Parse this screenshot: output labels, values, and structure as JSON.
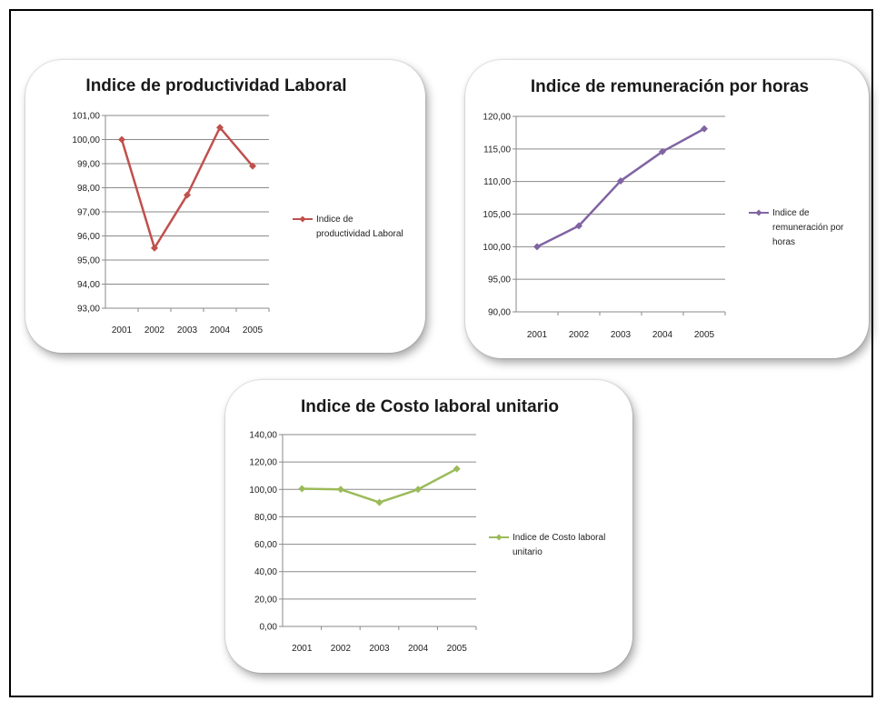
{
  "chart_data": [
    {
      "type": "line",
      "title": "Indice de productividad Laboral",
      "categories": [
        "2001",
        "2002",
        "2003",
        "2004",
        "2005"
      ],
      "series": [
        {
          "name": "Indice de productividad Laboral",
          "values": [
            100.0,
            95.5,
            97.7,
            100.5,
            98.9
          ]
        }
      ],
      "ylim": [
        93,
        101
      ],
      "yticks": [
        "93,00",
        "94,00",
        "95,00",
        "96,00",
        "97,00",
        "98,00",
        "99,00",
        "100,00",
        "101,00"
      ],
      "legend_lines": [
        "Indice de",
        "productividad Laboral"
      ],
      "legend_position": "right",
      "grid": true,
      "color": "#c0504d"
    },
    {
      "type": "line",
      "title": "Indice de remuneración por horas",
      "categories": [
        "2001",
        "2002",
        "2003",
        "2004",
        "2005"
      ],
      "series": [
        {
          "name": "Indice de remuneración por horas",
          "values": [
            100.0,
            103.2,
            110.1,
            114.6,
            118.1
          ]
        }
      ],
      "ylim": [
        90,
        120
      ],
      "yticks": [
        "90,00",
        "95,00",
        "100,00",
        "105,00",
        "110,00",
        "115,00",
        "120,00"
      ],
      "legend_lines": [
        "Indice de",
        "remuneración por",
        "horas"
      ],
      "legend_position": "right",
      "grid": true,
      "color": "#8064a2"
    },
    {
      "type": "line",
      "title": "Indice de Costo laboral unitario",
      "categories": [
        "2001",
        "2002",
        "2003",
        "2004",
        "2005"
      ],
      "series": [
        {
          "name": "Indice de Costo laboral unitario",
          "values": [
            100.5,
            100.0,
            90.5,
            100.0,
            115.0
          ]
        }
      ],
      "ylim": [
        0,
        140
      ],
      "yticks": [
        "0,00",
        "20,00",
        "40,00",
        "60,00",
        "80,00",
        "100,00",
        "120,00",
        "140,00"
      ],
      "legend_lines": [
        "Indice de Costo laboral",
        "unitario"
      ],
      "legend_position": "right",
      "grid": true,
      "color": "#9bbb59"
    }
  ]
}
